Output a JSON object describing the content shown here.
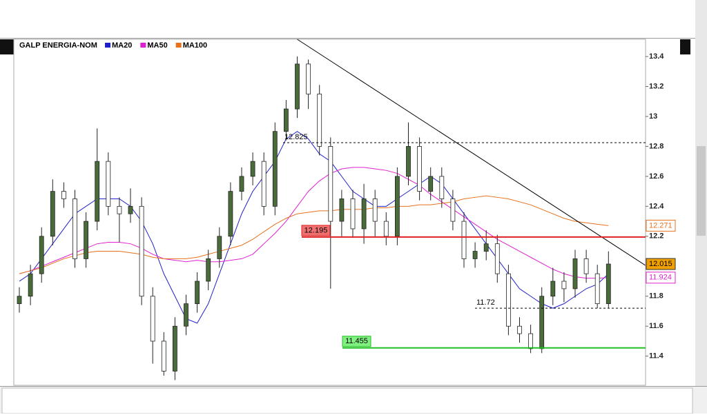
{
  "chart_data": {
    "type": "candlestick",
    "title": "GALP ENERGIA-NOM",
    "open": [
      11.75,
      11.8,
      11.95,
      12.2,
      12.5,
      12.45,
      12.05,
      12.3,
      12.7,
      12.4,
      12.35,
      12.4,
      11.8,
      11.5,
      11.3,
      11.6,
      11.75,
      11.9,
      12.05,
      12.2,
      12.5,
      12.6,
      12.7,
      12.4,
      12.9,
      13.05,
      13.35,
      13.15,
      12.8,
      12.3,
      12.45,
      12.25,
      12.45,
      12.3,
      12.2,
      12.6,
      12.8,
      12.5,
      12.6,
      12.45,
      12.3,
      12.05,
      12.1,
      12.15,
      11.95,
      11.6,
      11.55,
      11.45,
      11.8,
      11.9,
      11.85,
      12.05,
      11.95,
      11.75
    ],
    "high": [
      11.86,
      12.01,
      12.26,
      12.58,
      12.56,
      12.51,
      12.36,
      12.92,
      12.76,
      12.46,
      12.52,
      12.46,
      11.86,
      11.56,
      11.66,
      11.81,
      11.96,
      12.11,
      12.26,
      12.56,
      12.66,
      12.76,
      12.76,
      12.96,
      13.11,
      13.4,
      13.38,
      13.21,
      12.86,
      12.51,
      12.51,
      12.55,
      12.51,
      12.36,
      12.66,
      12.96,
      12.86,
      12.66,
      12.66,
      12.51,
      12.36,
      12.16,
      12.24,
      12.21,
      12.01,
      11.66,
      11.61,
      11.86,
      11.99,
      11.96,
      12.11,
      12.11,
      12.01,
      12.1
    ],
    "low": [
      11.69,
      11.74,
      11.89,
      12.14,
      12.39,
      11.99,
      11.99,
      12.24,
      12.34,
      12.16,
      12.29,
      11.74,
      11.35,
      11.27,
      11.24,
      11.54,
      11.69,
      11.84,
      11.99,
      12.14,
      12.44,
      12.54,
      12.34,
      12.34,
      12.84,
      12.99,
      13.05,
      12.74,
      11.85,
      12.2,
      12.19,
      12.15,
      12.2,
      12.14,
      12.14,
      12.54,
      12.44,
      12.44,
      12.39,
      12.24,
      11.99,
      11.99,
      12.04,
      11.89,
      11.54,
      11.49,
      11.42,
      11.42,
      11.74,
      11.76,
      11.79,
      11.89,
      11.72,
      11.72
    ],
    "close": [
      11.8,
      11.95,
      12.2,
      12.5,
      12.45,
      12.05,
      12.3,
      12.7,
      12.4,
      12.35,
      12.4,
      11.8,
      11.5,
      11.3,
      11.6,
      11.75,
      11.9,
      12.05,
      12.2,
      12.5,
      12.6,
      12.7,
      12.4,
      12.9,
      13.05,
      13.35,
      13.15,
      12.8,
      12.3,
      12.45,
      12.25,
      12.45,
      12.3,
      12.2,
      12.6,
      12.8,
      12.5,
      12.6,
      12.45,
      12.3,
      12.05,
      12.1,
      12.15,
      11.95,
      11.6,
      11.55,
      11.45,
      11.8,
      11.9,
      11.85,
      12.05,
      11.95,
      11.75,
      12.015
    ],
    "up_color": "#4a6b3a",
    "down_color": "#ffffff",
    "series": [
      {
        "name": "MA20",
        "color": "#1f1fc8",
        "values": [
          11.9,
          11.95,
          12.05,
          12.15,
          12.25,
          12.35,
          12.4,
          12.45,
          12.45,
          12.45,
          12.4,
          12.3,
          12.15,
          11.95,
          11.8,
          11.65,
          11.62,
          11.75,
          11.95,
          12.15,
          12.35,
          12.5,
          12.6,
          12.7,
          12.85,
          12.9,
          12.85,
          12.75,
          12.7,
          12.6,
          12.5,
          12.45,
          12.4,
          12.4,
          12.45,
          12.5,
          12.55,
          12.6,
          12.55,
          12.45,
          12.35,
          12.25,
          12.15,
          12.05,
          11.95,
          11.85,
          11.8,
          11.75,
          11.72,
          11.75,
          11.8,
          11.85,
          11.88,
          11.95
        ]
      },
      {
        "name": "MA50",
        "color": "#e020d0",
        "values": [
          11.95,
          11.97,
          12.0,
          12.03,
          12.06,
          12.09,
          12.12,
          12.15,
          12.16,
          12.16,
          12.15,
          12.12,
          12.08,
          12.05,
          12.04,
          12.03,
          12.04,
          12.03,
          12.03,
          12.04,
          12.05,
          12.08,
          12.15,
          12.22,
          12.3,
          12.4,
          12.5,
          12.57,
          12.62,
          12.65,
          12.66,
          12.66,
          12.65,
          12.64,
          12.62,
          12.58,
          12.54,
          12.48,
          12.43,
          12.38,
          12.33,
          12.28,
          12.23,
          12.18,
          12.14,
          12.1,
          12.06,
          12.02,
          11.98,
          11.95,
          11.93,
          11.92,
          11.92,
          11.924
        ]
      },
      {
        "name": "MA100",
        "color": "#e8701a",
        "values": [
          11.95,
          11.97,
          11.99,
          12.02,
          12.05,
          12.07,
          12.09,
          12.1,
          12.1,
          12.1,
          12.09,
          12.08,
          12.06,
          12.05,
          12.05,
          12.05,
          12.06,
          12.08,
          12.1,
          12.12,
          12.14,
          12.18,
          12.23,
          12.28,
          12.32,
          12.35,
          12.36,
          12.37,
          12.37,
          12.38,
          12.38,
          12.38,
          12.39,
          12.39,
          12.4,
          12.4,
          12.41,
          12.41,
          12.42,
          12.43,
          12.45,
          12.46,
          12.47,
          12.46,
          12.45,
          12.43,
          12.41,
          12.38,
          12.35,
          12.32,
          12.3,
          12.29,
          12.28,
          12.271
        ]
      }
    ],
    "levels": [
      {
        "value": 12.195,
        "color": "#e02020",
        "style": "solid"
      },
      {
        "value": 11.455,
        "color": "#20c020",
        "style": "solid"
      },
      {
        "value": 12.825,
        "color": "#000000",
        "style": "dashed"
      },
      {
        "value": 11.72,
        "color": "#000000",
        "style": "dashed"
      }
    ],
    "trendline": {
      "x": [
        25,
        56.3
      ],
      "y": [
        13.515,
        12.007
      ]
    },
    "ylim": [
      11.21,
      13.515
    ],
    "yticks": [
      11.4,
      11.6,
      11.8,
      12,
      12.2,
      12.4,
      12.6,
      12.8,
      13,
      13.2,
      13.4
    ]
  }
}
